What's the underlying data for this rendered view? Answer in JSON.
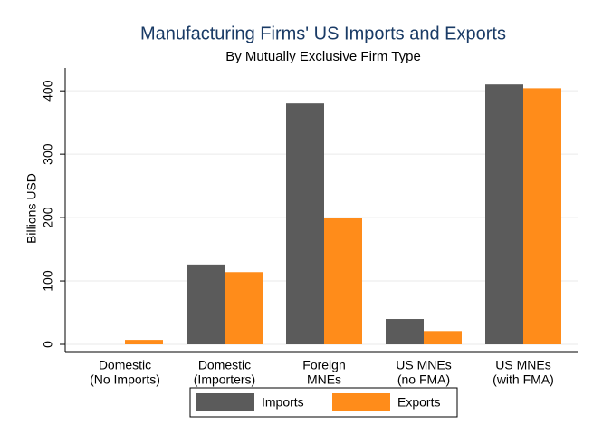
{
  "chart_data": {
    "type": "bar",
    "title": "Manufacturing Firms' US Imports and Exports",
    "subtitle": "By Mutually Exclusive Firm Type",
    "y_label": "Billions USD",
    "categories": [
      [
        "Domestic",
        "(No Imports)"
      ],
      [
        "Domestic",
        "(Importers)"
      ],
      [
        "Foreign",
        "MNEs"
      ],
      [
        "US MNEs",
        "(no FMA)"
      ],
      [
        "US MNEs",
        "(with FMA)"
      ]
    ],
    "series": [
      {
        "name": "Imports",
        "color": "#5b5b5b",
        "values": [
          0,
          126,
          380,
          40,
          410
        ]
      },
      {
        "name": "Exports",
        "color": "#ff8c1a",
        "values": [
          7,
          114,
          199,
          21,
          404
        ]
      }
    ],
    "ylim": [
      0,
      436
    ],
    "yticks": [
      0,
      100,
      200,
      300,
      400
    ],
    "grid": true
  }
}
